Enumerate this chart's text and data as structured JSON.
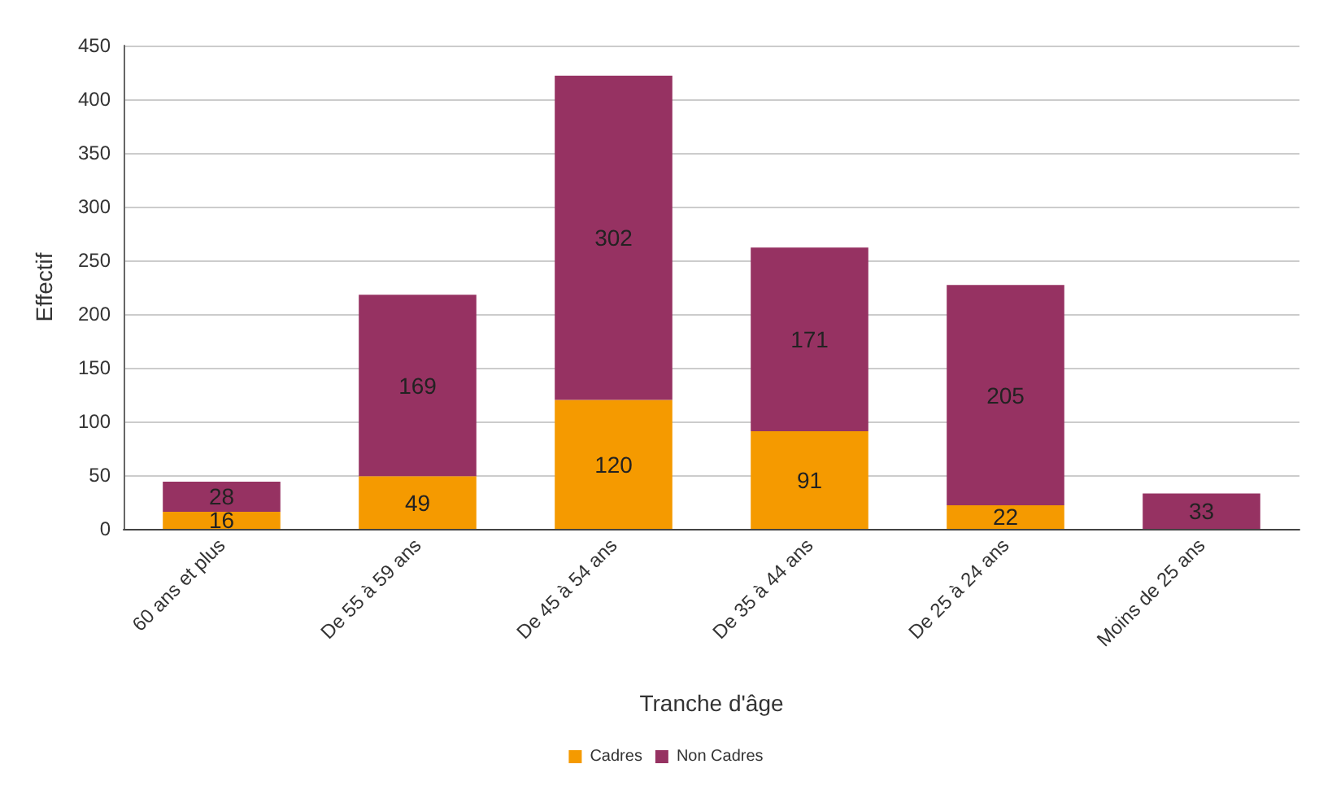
{
  "chart_data": {
    "type": "bar",
    "xlabel": "Tranche d'âge",
    "ylabel": "Effectif",
    "categories": [
      "60 ans et plus",
      "De 55 à 59 ans",
      "De 45 à 54 ans",
      "De 35 à 44 ans",
      "De 25 à 24 ans",
      "Moins de 25 ans"
    ],
    "series": [
      {
        "name": "Cadres",
        "color": "#f59a00",
        "values": [
          16,
          49,
          120,
          91,
          22,
          null
        ]
      },
      {
        "name": "Non Cadres",
        "color": "#963262",
        "values": [
          28,
          169,
          302,
          171,
          205,
          33
        ]
      }
    ],
    "stacked": true,
    "ylim": [
      0,
      450
    ],
    "yticks": [
      0,
      50,
      100,
      150,
      200,
      250,
      300,
      350,
      400,
      450
    ],
    "grid": "y",
    "legend": "bottom",
    "data_labels": true
  }
}
